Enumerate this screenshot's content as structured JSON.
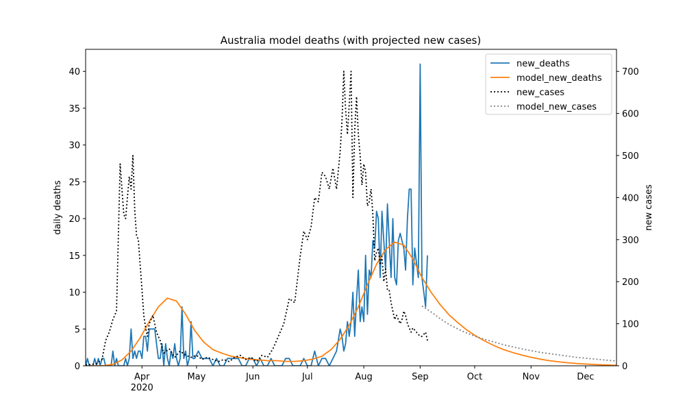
{
  "chart_data": {
    "type": "line",
    "title": "Australia model deaths (with projected new cases)",
    "ylabel": "daily deaths",
    "y2label": "new cases",
    "ylim": [
      0,
      43
    ],
    "y2lim": [
      0,
      752.5
    ],
    "xlim_day": [
      0,
      292
    ],
    "y_ticks": [
      0,
      5,
      10,
      15,
      20,
      25,
      30,
      35,
      40
    ],
    "y2_ticks": [
      0,
      100,
      200,
      300,
      400,
      500,
      600,
      700
    ],
    "x_ticks": [
      {
        "day": 31,
        "label": "Apr"
      },
      {
        "day": 61,
        "label": "May"
      },
      {
        "day": 92,
        "label": "Jun"
      },
      {
        "day": 122,
        "label": "Jul"
      },
      {
        "day": 153,
        "label": "Aug"
      },
      {
        "day": 184,
        "label": "Sep"
      },
      {
        "day": 214,
        "label": "Oct"
      },
      {
        "day": 245,
        "label": "Nov"
      },
      {
        "day": 275,
        "label": "Dec"
      }
    ],
    "year_label": {
      "day": 31,
      "label": "2020"
    },
    "legend_position": "top-right",
    "series": [
      {
        "name": "new_deaths",
        "axis": "left",
        "color": "#1f77b4",
        "dash": "",
        "x": [
          0,
          1,
          2,
          3,
          4,
          5,
          6,
          7,
          8,
          9,
          10,
          11,
          12,
          13,
          14,
          15,
          16,
          17,
          18,
          19,
          20,
          21,
          22,
          23,
          24,
          25,
          26,
          27,
          28,
          29,
          30,
          31,
          32,
          33,
          34,
          35,
          36,
          37,
          38,
          39,
          40,
          41,
          42,
          43,
          44,
          45,
          46,
          47,
          48,
          49,
          50,
          51,
          52,
          53,
          54,
          55,
          56,
          57,
          58,
          59,
          60,
          62,
          64,
          66,
          68,
          70,
          72,
          74,
          76,
          78,
          80,
          82,
          84,
          86,
          88,
          90,
          92,
          94,
          96,
          98,
          100,
          102,
          104,
          106,
          108,
          110,
          112,
          114,
          116,
          118,
          120,
          122,
          124,
          126,
          128,
          130,
          132,
          134,
          136,
          138,
          140,
          141,
          142,
          143,
          144,
          145,
          146,
          147,
          148,
          149,
          150,
          151,
          152,
          153,
          154,
          155,
          156,
          157,
          158,
          159,
          160,
          161,
          162,
          163,
          164,
          165,
          166,
          167,
          168,
          169,
          170,
          171,
          172,
          173,
          174,
          175,
          176,
          177,
          178,
          179,
          180,
          181,
          182,
          183,
          184,
          185,
          186,
          187,
          188
        ],
        "y": [
          0,
          1,
          0,
          0,
          0,
          1,
          0,
          1,
          0,
          1,
          1,
          0,
          0,
          0,
          0,
          2,
          0,
          1,
          0,
          0,
          0,
          0,
          1,
          0,
          1,
          5,
          1,
          2,
          1,
          2,
          2,
          1,
          4,
          4,
          2,
          5,
          5,
          5,
          5,
          3,
          1,
          1,
          3,
          0,
          3,
          1,
          0,
          2,
          1,
          3,
          1,
          0,
          1,
          8,
          1,
          2,
          0,
          1,
          6,
          1,
          1,
          2,
          1,
          1,
          1,
          0,
          1,
          0,
          0,
          1,
          1,
          1,
          1,
          0,
          0,
          1,
          1,
          0,
          1,
          0,
          0,
          1,
          0,
          0,
          0,
          1,
          1,
          0,
          0,
          0,
          1,
          0,
          0,
          2,
          0,
          1,
          1,
          0,
          1,
          2,
          5,
          4,
          2,
          3,
          6,
          4,
          6,
          10,
          4,
          9,
          13,
          6,
          8,
          6,
          15,
          7,
          13,
          12,
          17,
          16,
          21,
          20,
          12,
          21,
          17,
          13,
          22,
          17,
          12,
          20,
          12,
          11,
          17,
          18,
          17,
          16,
          13,
          20,
          24,
          24,
          11,
          16,
          14,
          12,
          41,
          12,
          10,
          8,
          15
        ]
      },
      {
        "name": "model_new_deaths",
        "axis": "left",
        "color": "#ff7f0e",
        "dash": "",
        "x": [
          0,
          5,
          10,
          15,
          20,
          25,
          30,
          35,
          40,
          45,
          50,
          55,
          60,
          65,
          70,
          75,
          80,
          85,
          90,
          95,
          100,
          105,
          110,
          115,
          120,
          125,
          130,
          135,
          140,
          145,
          150,
          155,
          160,
          165,
          170,
          175,
          180,
          185,
          190,
          195,
          200,
          205,
          210,
          215,
          220,
          225,
          230,
          235,
          240,
          245,
          250,
          255,
          260,
          265,
          270,
          275,
          280,
          285,
          290,
          292
        ],
        "y": [
          0,
          0,
          0.02,
          0.2,
          0.8,
          2.0,
          3.8,
          6.0,
          8.0,
          9.2,
          8.8,
          7.0,
          4.8,
          3.2,
          2.2,
          1.7,
          1.3,
          1.1,
          0.9,
          0.8,
          0.7,
          0.7,
          0.6,
          0.6,
          0.7,
          0.9,
          1.3,
          2.2,
          3.6,
          5.5,
          8.0,
          11.0,
          13.8,
          15.8,
          16.8,
          16.4,
          14.5,
          12.0,
          10.0,
          8.3,
          6.9,
          5.8,
          4.8,
          4.0,
          3.3,
          2.7,
          2.2,
          1.8,
          1.45,
          1.15,
          0.9,
          0.7,
          0.55,
          0.42,
          0.32,
          0.24,
          0.17,
          0.12,
          0.08,
          0.07
        ]
      },
      {
        "name": "new_cases",
        "axis": "right",
        "color": "#000000",
        "dash": "2,3",
        "x": [
          0,
          3,
          6,
          9,
          11,
          13,
          15,
          17,
          19,
          21,
          22,
          23,
          24,
          25,
          26,
          27,
          28,
          29,
          30,
          31,
          32,
          33,
          34,
          35,
          37,
          39,
          41,
          43,
          46,
          49,
          52,
          55,
          58,
          61,
          64,
          67,
          70,
          73,
          76,
          79,
          82,
          85,
          88,
          91,
          94,
          97,
          100,
          103,
          106,
          109,
          112,
          115,
          118,
          120,
          122,
          124,
          126,
          128,
          130,
          132,
          134,
          136,
          138,
          140,
          141,
          142,
          143,
          144,
          145,
          146,
          147,
          148,
          149,
          150,
          151,
          152,
          153,
          154,
          155,
          156,
          157,
          158,
          159,
          160,
          161,
          162,
          163,
          164,
          165,
          166,
          167,
          168,
          169,
          170,
          171,
          172,
          173,
          174,
          175,
          176,
          177,
          178,
          179,
          180,
          181,
          182,
          183,
          184,
          185,
          186,
          187,
          188
        ],
        "y": [
          2,
          3,
          5,
          15,
          60,
          80,
          110,
          130,
          480,
          360,
          350,
          400,
          450,
          420,
          500,
          370,
          310,
          300,
          240,
          180,
          120,
          90,
          70,
          100,
          120,
          80,
          60,
          30,
          40,
          20,
          35,
          25,
          20,
          25,
          15,
          20,
          15,
          10,
          15,
          10,
          20,
          25,
          15,
          20,
          10,
          25,
          20,
          40,
          70,
          100,
          160,
          150,
          260,
          320,
          300,
          330,
          400,
          390,
          460,
          450,
          420,
          470,
          420,
          510,
          580,
          700,
          610,
          550,
          620,
          700,
          400,
          560,
          640,
          550,
          500,
          430,
          480,
          460,
          380,
          390,
          420,
          360,
          250,
          270,
          280,
          240,
          260,
          200,
          230,
          180,
          180,
          150,
          130,
          110,
          120,
          110,
          100,
          110,
          130,
          120,
          100,
          90,
          80,
          90,
          85,
          80,
          75,
          70,
          70,
          75,
          80,
          60
        ]
      },
      {
        "name": "model_new_cases",
        "axis": "right",
        "color": "#808080",
        "dash": "2,3",
        "x": [
          185,
          190,
          195,
          200,
          205,
          210,
          215,
          220,
          225,
          230,
          235,
          240,
          245,
          250,
          255,
          260,
          265,
          270,
          275,
          280,
          285,
          290,
          292
        ],
        "y": [
          142,
          128,
          112,
          98,
          87,
          77,
          69,
          62,
          56,
          50,
          45,
          40,
          36,
          32,
          29,
          26,
          23,
          20,
          18,
          16,
          14,
          12,
          11
        ]
      }
    ]
  }
}
